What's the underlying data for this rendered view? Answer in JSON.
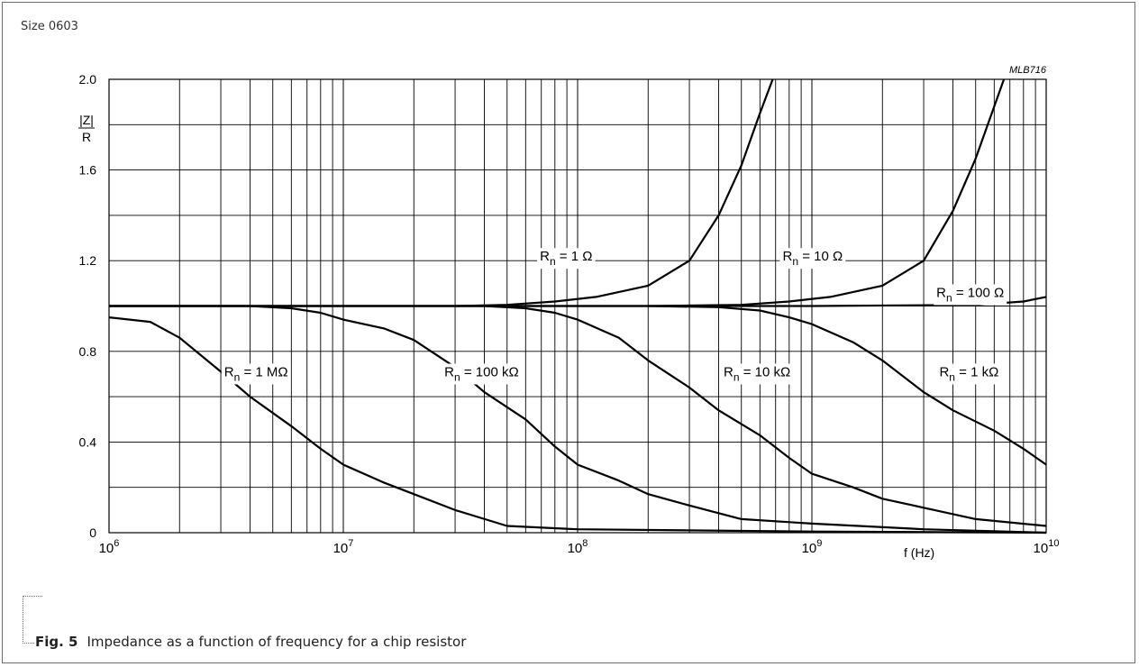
{
  "header": {
    "size_label": "Size 0603",
    "code": "MLB716"
  },
  "caption": {
    "figure": "Fig. 5",
    "text": "Impedance as a function of frequency for a chip resistor"
  },
  "chart_data": {
    "type": "line",
    "x_scale": "log",
    "xlim": [
      1000000,
      10000000000
    ],
    "ylim": [
      0,
      2.0
    ],
    "grid": true,
    "ylabel": {
      "numerator": "|Z|",
      "denominator": "R"
    },
    "xlabel": "f  (Hz)",
    "x_ticks": [
      {
        "base": "10",
        "exp": "6",
        "value": 1000000
      },
      {
        "base": "10",
        "exp": "7",
        "value": 10000000
      },
      {
        "base": "10",
        "exp": "8",
        "value": 100000000
      },
      {
        "base": "10",
        "exp": "9",
        "value": 1000000000
      },
      {
        "base": "10",
        "exp": "10",
        "value": 10000000000
      }
    ],
    "y_ticks": [
      "0",
      "0.4",
      "0.8",
      "1.2",
      "1.6",
      "2.0"
    ],
    "y_tick_values": [
      0,
      0.4,
      0.8,
      1.2,
      1.6,
      2.0
    ],
    "series": [
      {
        "name": "Rn = 1 Ω",
        "label": {
          "main": "R",
          "sub": "n",
          "rest": " = 1 Ω"
        },
        "label_at": {
          "x": 69000000,
          "y": 1.2
        },
        "points": [
          [
            30000000,
            1.0
          ],
          [
            50000000,
            1.005
          ],
          [
            80000000,
            1.02
          ],
          [
            120000000,
            1.04
          ],
          [
            200000000,
            1.09
          ],
          [
            300000000,
            1.2
          ],
          [
            400000000,
            1.4
          ],
          [
            500000000,
            1.62
          ],
          [
            600000000,
            1.85
          ],
          [
            680000000,
            2.0
          ]
        ]
      },
      {
        "name": "Rn = 10 Ω",
        "label": {
          "main": "R",
          "sub": "n",
          "rest": " = 10 Ω"
        },
        "label_at": {
          "x": 750000000,
          "y": 1.2
        },
        "points": [
          [
            200000000,
            1.0
          ],
          [
            500000000,
            1.005
          ],
          [
            800000000,
            1.02
          ],
          [
            1200000000,
            1.04
          ],
          [
            2000000000,
            1.09
          ],
          [
            3000000000,
            1.2
          ],
          [
            4000000000,
            1.42
          ],
          [
            5000000000,
            1.65
          ],
          [
            6000000000,
            1.88
          ],
          [
            6600000000,
            2.0
          ]
        ]
      },
      {
        "name": "Rn = 100 Ω",
        "label": {
          "main": "R",
          "sub": "n",
          "rest": " = 100 Ω"
        },
        "label_at": {
          "x": 3400000000,
          "y": 1.04
        },
        "points": [
          [
            1000000,
            1.0
          ],
          [
            1000000000,
            1.0
          ],
          [
            5000000000,
            1.005
          ],
          [
            8000000000,
            1.02
          ],
          [
            10000000000,
            1.04
          ]
        ]
      },
      {
        "name": "Rn = 1 kΩ",
        "label": {
          "main": "R",
          "sub": "n",
          "rest": " = 1 kΩ"
        },
        "label_at": {
          "x": 3500000000,
          "y": 0.69
        },
        "points": [
          [
            1000000,
            1.0
          ],
          [
            200000000,
            1.0
          ],
          [
            400000000,
            0.995
          ],
          [
            600000000,
            0.98
          ],
          [
            800000000,
            0.95
          ],
          [
            1000000000,
            0.92
          ],
          [
            1500000000,
            0.84
          ],
          [
            2000000000,
            0.76
          ],
          [
            3000000000,
            0.62
          ],
          [
            4000000000,
            0.54
          ],
          [
            6000000000,
            0.45
          ],
          [
            8000000000,
            0.37
          ],
          [
            10000000000,
            0.3
          ]
        ]
      },
      {
        "name": "Rn = 10 kΩ",
        "label": {
          "main": "R",
          "sub": "n",
          "rest": " = 10 kΩ"
        },
        "label_at": {
          "x": 420000000,
          "y": 0.69
        },
        "points": [
          [
            1000000,
            1.0
          ],
          [
            40000000,
            1.0
          ],
          [
            60000000,
            0.99
          ],
          [
            80000000,
            0.97
          ],
          [
            100000000,
            0.94
          ],
          [
            150000000,
            0.86
          ],
          [
            200000000,
            0.76
          ],
          [
            300000000,
            0.64
          ],
          [
            400000000,
            0.54
          ],
          [
            600000000,
            0.43
          ],
          [
            800000000,
            0.33
          ],
          [
            1000000000,
            0.26
          ],
          [
            1500000000,
            0.2
          ],
          [
            2000000000,
            0.15
          ],
          [
            3000000000,
            0.11
          ],
          [
            5000000000,
            0.06
          ],
          [
            10000000000,
            0.03
          ]
        ]
      },
      {
        "name": "Rn = 100 kΩ",
        "label": {
          "main": "R",
          "sub": "n",
          "rest": " = 100 kΩ"
        },
        "label_at": {
          "x": 27000000,
          "y": 0.69
        },
        "points": [
          [
            1000000,
            1.0
          ],
          [
            4000000,
            1.0
          ],
          [
            6000000,
            0.99
          ],
          [
            8000000,
            0.97
          ],
          [
            10000000,
            0.94
          ],
          [
            15000000,
            0.9
          ],
          [
            20000000,
            0.85
          ],
          [
            30000000,
            0.73
          ],
          [
            40000000,
            0.62
          ],
          [
            60000000,
            0.5
          ],
          [
            80000000,
            0.38
          ],
          [
            100000000,
            0.3
          ],
          [
            150000000,
            0.23
          ],
          [
            200000000,
            0.17
          ],
          [
            300000000,
            0.12
          ],
          [
            500000000,
            0.06
          ],
          [
            1000000000,
            0.04
          ],
          [
            3000000000,
            0.015
          ],
          [
            10000000000,
            0.0
          ]
        ]
      },
      {
        "name": "Rn = 1 MΩ",
        "label": {
          "main": "R",
          "sub": "n",
          "rest": " = 1 MΩ"
        },
        "label_at": {
          "x": 3100000,
          "y": 0.69
        },
        "points": [
          [
            1000000,
            0.95
          ],
          [
            1500000,
            0.93
          ],
          [
            2000000,
            0.86
          ],
          [
            3000000,
            0.71
          ],
          [
            4000000,
            0.6
          ],
          [
            6000000,
            0.47
          ],
          [
            8000000,
            0.37
          ],
          [
            10000000,
            0.3
          ],
          [
            15000000,
            0.22
          ],
          [
            20000000,
            0.17
          ],
          [
            30000000,
            0.1
          ],
          [
            50000000,
            0.03
          ],
          [
            100000000,
            0.015
          ],
          [
            1000000000,
            0.005
          ],
          [
            10000000000,
            0.0
          ]
        ]
      }
    ]
  }
}
